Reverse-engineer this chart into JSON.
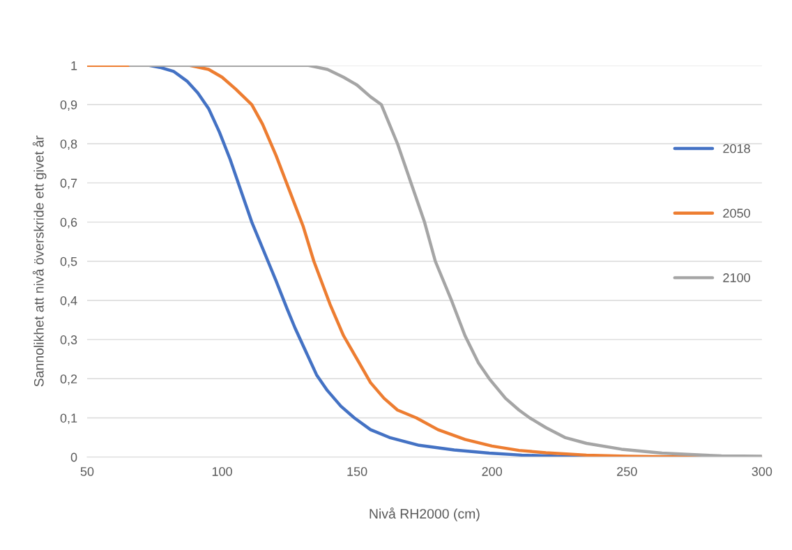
{
  "chart_data": {
    "type": "line",
    "xlabel": "Nivå RH2000 (cm)",
    "ylabel": "Sannolikhet att nivå överskride ett givet år",
    "xlim": [
      50,
      300
    ],
    "xticks": [
      50,
      100,
      150,
      200,
      250,
      300
    ],
    "ylim": [
      0,
      1
    ],
    "yticks": [
      0,
      {
        "value": 0.1,
        "label": "0,1"
      },
      {
        "value": 0.2,
        "label": "0,2"
      },
      {
        "value": 0.3,
        "label": "0,3"
      },
      {
        "value": 0.4,
        "label": "0,4"
      },
      {
        "value": 0.5,
        "label": "0,5"
      },
      {
        "value": 0.6,
        "label": "0,6"
      },
      {
        "value": 0.7,
        "label": "0,7"
      },
      {
        "value": 0.8,
        "label": "0,8"
      },
      {
        "value": 0.9,
        "label": "0,9"
      },
      1
    ],
    "grid": "y",
    "legend": "right",
    "marker": "none",
    "line_style": "solid",
    "series": [
      {
        "name": "2018",
        "color": "#4472c4",
        "x": [
          73,
          77,
          82,
          87,
          91,
          95,
          99,
          103,
          107,
          111,
          114,
          117,
          120,
          124,
          127,
          131,
          135,
          139,
          144,
          149,
          155,
          162,
          173,
          186,
          199,
          211,
          224,
          250,
          300
        ],
        "values": [
          1,
          0.995,
          0.985,
          0.96,
          0.93,
          0.89,
          0.83,
          0.76,
          0.68,
          0.6,
          0.55,
          0.5,
          0.45,
          0.38,
          0.33,
          0.27,
          0.21,
          0.17,
          0.13,
          0.1,
          0.07,
          0.05,
          0.03,
          0.018,
          0.01,
          0.005,
          0.002,
          0,
          0
        ]
      },
      {
        "name": "2050",
        "color": "#ed7d31",
        "x": [
          50,
          88,
          95,
          100,
          105,
          111,
          115,
          120,
          125,
          130,
          134,
          140,
          145,
          150,
          155,
          160,
          165,
          172,
          180,
          190,
          200,
          210,
          220,
          235,
          250,
          275,
          300
        ],
        "values": [
          1,
          1,
          0.99,
          0.97,
          0.94,
          0.9,
          0.85,
          0.77,
          0.68,
          0.59,
          0.5,
          0.39,
          0.31,
          0.25,
          0.19,
          0.15,
          0.12,
          0.1,
          0.07,
          0.045,
          0.028,
          0.017,
          0.011,
          0.005,
          0.002,
          0,
          0
        ]
      },
      {
        "name": "2100",
        "color": "#a5a5a5",
        "x": [
          66,
          132,
          139,
          145,
          150,
          155,
          159,
          165,
          170,
          175,
          179,
          185,
          190,
          195,
          199,
          205,
          210,
          214,
          220,
          227,
          235,
          248,
          263,
          275,
          285,
          300
        ],
        "values": [
          1,
          1,
          0.99,
          0.97,
          0.95,
          0.92,
          0.9,
          0.8,
          0.7,
          0.6,
          0.5,
          0.4,
          0.31,
          0.24,
          0.2,
          0.15,
          0.12,
          0.1,
          0.075,
          0.05,
          0.035,
          0.02,
          0.01,
          0.006,
          0.003,
          0.002
        ]
      }
    ]
  }
}
